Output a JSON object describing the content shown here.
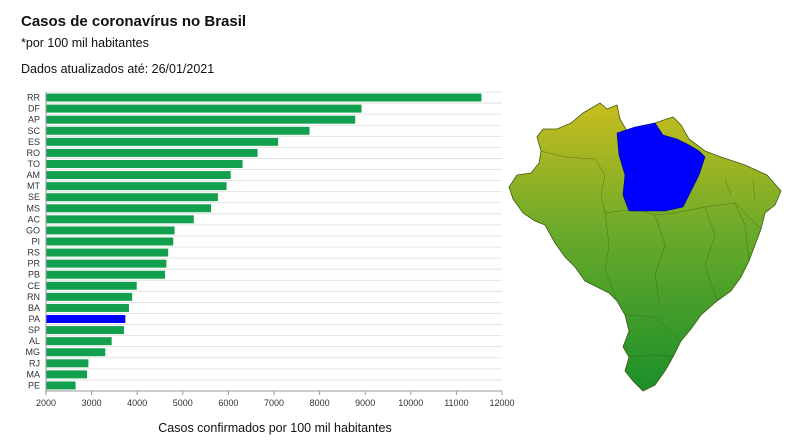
{
  "header": {
    "title": "Casos de coronavírus no Brasil",
    "subtitle": "*por 100 mil habitantes",
    "updated": "Dados atualizados até: 26/01/2021"
  },
  "colors": {
    "bar": "#12a04f",
    "highlight": "#0000ff",
    "grid": "#dddddd",
    "map_south": "#1a8f2a",
    "map_mid": "#6aaa2a",
    "map_north": "#c9bd1e"
  },
  "chart_data": {
    "type": "bar",
    "orientation": "horizontal",
    "xlabel": "Casos confirmados por 100 mil habitantes",
    "xlim": [
      2000,
      12000
    ],
    "xticks": [
      2000,
      3000,
      4000,
      5000,
      6000,
      7000,
      8000,
      9000,
      10000,
      11000,
      12000
    ],
    "grid": true,
    "highlight": "PA",
    "categories": [
      "RR",
      "DF",
      "AP",
      "SC",
      "ES",
      "RO",
      "TO",
      "AM",
      "MT",
      "SE",
      "MS",
      "AC",
      "GO",
      "PI",
      "RS",
      "PR",
      "PB",
      "CE",
      "RN",
      "BA",
      "PA",
      "SP",
      "AL",
      "MG",
      "RJ",
      "MA",
      "PE"
    ],
    "values": [
      11550,
      8920,
      8780,
      7780,
      7090,
      6640,
      6310,
      6050,
      5960,
      5770,
      5620,
      5240,
      4820,
      4790,
      4680,
      4640,
      4610,
      3990,
      3890,
      3820,
      3740,
      3710,
      3440,
      3300,
      2930,
      2900,
      2650
    ]
  },
  "map": {
    "highlight_region": "PA"
  }
}
